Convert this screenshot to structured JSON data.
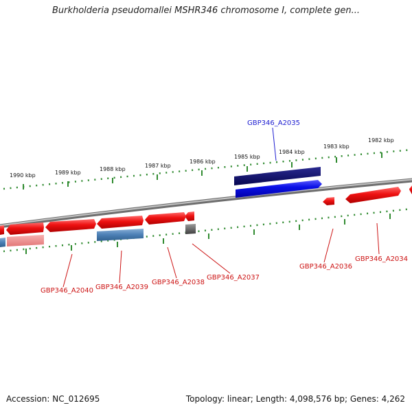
{
  "title": "Burkholderia pseudomallei MSHR346 chromosome I, complete gen...",
  "footer": {
    "accession": "Accession: NC_012695",
    "topology": "Topology: linear; Length: 4,098,576 bp; Genes: 4,262"
  },
  "colors": {
    "forward_gene": "#e31a1a",
    "reverse_gene_faded": "#f08c8c",
    "selected_gene_dark": "#0b0b6e",
    "selected_gene": "#0a10e6",
    "steelblue_gene": "#4b7fb5",
    "gray_gene": "#666666",
    "backbone": "#8a8a8a",
    "ticks": "#2f8a2f",
    "label_red": "#cc1111",
    "label_blue": "#1a1ad0"
  },
  "ruler": {
    "unit": "kbp",
    "labels": [
      "1990 kbp",
      "1989 kbp",
      "1988 kbp",
      "1987 kbp",
      "1986 kbp",
      "1985 kbp",
      "1984 kbp",
      "1983 kbp",
      "1982 kbp"
    ]
  },
  "gene_labels": {
    "selected": "GBP346_A2035",
    "others": [
      "GBP346_A2040",
      "GBP346_A2039",
      "GBP346_A2038",
      "GBP346_A2037",
      "GBP346_A2036",
      "GBP346_A2034"
    ]
  }
}
